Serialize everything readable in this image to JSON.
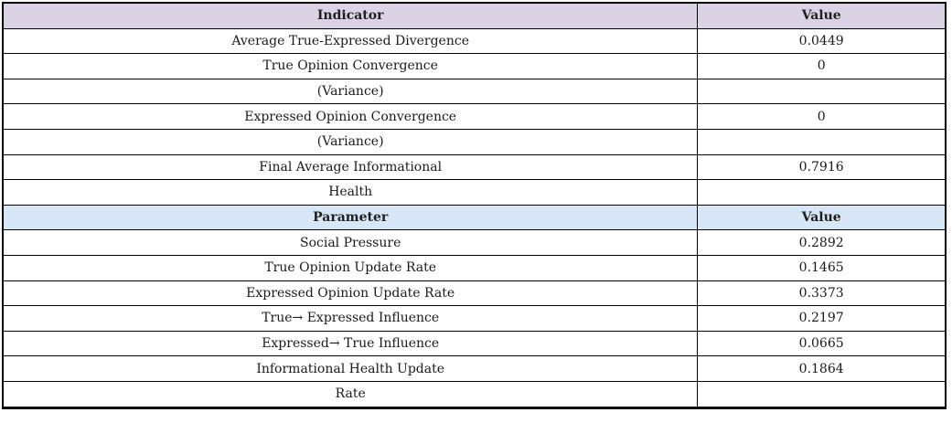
{
  "colors": {
    "indicator_header_bg": "#dcd2e6",
    "parameter_header_bg": "#d8e7f7",
    "border": "#000000",
    "text": "#1a1a1a",
    "row_bg": "#ffffff"
  },
  "display": {
    "section1": {
      "header": [
        "Indicator",
        "Value"
      ],
      "rows": [
        [
          "Average True-Expressed Divergence",
          "0.0449"
        ],
        [
          "True Opinion Convergence",
          "0"
        ],
        [
          "(Variance)",
          ""
        ],
        [
          "Expressed Opinion Convergence",
          "0"
        ],
        [
          "(Variance)",
          ""
        ],
        [
          "Final Average Informational",
          "0.7916"
        ],
        [
          "Health",
          ""
        ]
      ]
    },
    "section2": {
      "header": [
        "Parameter",
        "Value"
      ],
      "rows": [
        [
          "Social Pressure",
          "0.2892"
        ],
        [
          "True Opinion Update Rate",
          "0.1465"
        ],
        [
          "Expressed Opinion Update Rate",
          "0.3373"
        ],
        [
          "True→ Expressed Influence",
          "0.2197"
        ],
        [
          "Expressed→ True Influence",
          "0.0665"
        ],
        [
          "Informational Health Update",
          "0.1864"
        ],
        [
          "Rate",
          ""
        ]
      ]
    }
  },
  "chart_data": [
    {
      "type": "table",
      "title": "Simulation Results Indicators",
      "columns": [
        "Indicator",
        "Value"
      ],
      "rows": [
        [
          "Average True-Expressed Divergence",
          0.0449
        ],
        [
          "True Opinion Convergence (Variance)",
          0
        ],
        [
          "Expressed Opinion Convergence (Variance)",
          0
        ],
        [
          "Final Average Informational Health",
          0.7916
        ]
      ],
      "header_bg": "#dcd2e6"
    },
    {
      "type": "table",
      "title": "Simulation Parameters",
      "columns": [
        "Parameter",
        "Value"
      ],
      "rows": [
        [
          "Social Pressure",
          0.2892
        ],
        [
          "True Opinion Update Rate",
          0.1465
        ],
        [
          "Expressed Opinion Update Rate",
          0.3373
        ],
        [
          "True→ Expressed Influence",
          0.2197
        ],
        [
          "Expressed→ True Influence",
          0.0665
        ],
        [
          "Informational Health Update Rate",
          0.1864
        ]
      ],
      "header_bg": "#d8e7f7"
    }
  ]
}
